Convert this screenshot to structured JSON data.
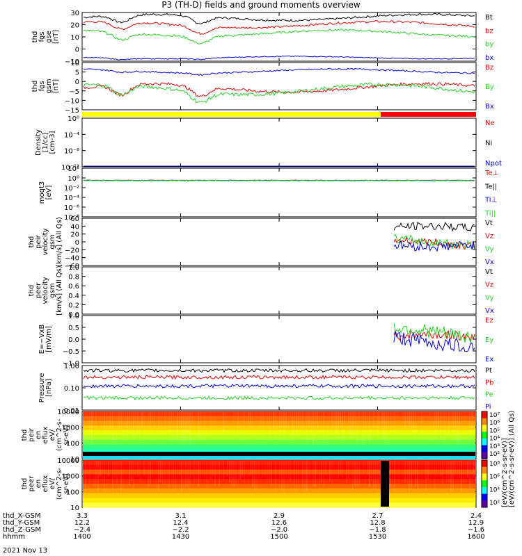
{
  "title": "P3 (TH-D) fields and ground moments overview",
  "colors": {
    "black": "#000000",
    "red": "#e00000",
    "green": "#22d322",
    "blue": "#0000d8"
  },
  "x_axis": {
    "rows": [
      {
        "label": "thd_X-GSM",
        "values": [
          "3.3",
          "3.1",
          "2.9",
          "2.7",
          "2.4"
        ]
      },
      {
        "label": "thd_Y-GSM",
        "values": [
          "12.2",
          "12.4",
          "12.6",
          "12.8",
          "12.9"
        ]
      },
      {
        "label": "thd_Z-GSM",
        "values": [
          "−2.4",
          "−2.2",
          "−2.0",
          "−1.8",
          "−1.6"
        ]
      },
      {
        "label": "hhmm",
        "values": [
          "1400",
          "1430",
          "1500",
          "1530",
          "1600"
        ]
      }
    ],
    "date": "2021 Nov 13"
  },
  "colorbar_label": "[eV/(cm^2-s-sr-eV)] (All Qs)",
  "colorbar_label_2": "[eV/(cm^2-s-sr-eV)]",
  "chart_data": [
    {
      "type": "line",
      "id": "fgs_gse",
      "ylabel": [
        "thd",
        "fgs",
        "gse",
        "[nT]"
      ],
      "ylim": [
        -10,
        30
      ],
      "yticks": [
        "30",
        "20",
        "10",
        "0",
        "−10"
      ],
      "series": [
        {
          "name": "Bt",
          "color": "black",
          "level": 26,
          "amp": 2.5
        },
        {
          "name": "bz",
          "color": "red",
          "level": 20,
          "amp": 2.5
        },
        {
          "name": "by",
          "color": "green",
          "level": 13,
          "amp": 2.5
        },
        {
          "name": "bx",
          "color": "blue",
          "level": -7,
          "amp": 1
        }
      ]
    },
    {
      "type": "line",
      "id": "fgs_gsm",
      "ylabel": [
        "thd",
        "fgs",
        "gsm",
        "[nT]"
      ],
      "ylim": [
        -18,
        10
      ],
      "yticks": [
        "10",
        "5",
        "0",
        "−5",
        "−10",
        "−15"
      ],
      "series": [
        {
          "name": "Bz",
          "color": "red",
          "level": -5,
          "amp": 2.5
        },
        {
          "name": "By",
          "color": "green",
          "level": -6,
          "amp": 3
        },
        {
          "name": "Bx",
          "color": "blue",
          "level": 5,
          "amp": 1.2
        }
      ]
    },
    {
      "type": "line",
      "id": "density",
      "ylabel": [
        "Density",
        "[1/cc]",
        "[cm-3]"
      ],
      "ylim": [
        -14,
        2
      ],
      "log": true,
      "yticks": [
        "10⁰",
        "10⁻⁴",
        "10⁻⁸",
        "10⁻¹²"
      ],
      "series": [
        {
          "name": "Ne",
          "color": "red",
          "level": 0
        },
        {
          "name": "Ni",
          "color": "black",
          "level": 0
        },
        {
          "name": "Npot",
          "color": "blue",
          "level": 0
        }
      ]
    },
    {
      "type": "line",
      "id": "temp",
      "ylabel": [
        "moqt3",
        "[eV]"
      ],
      "ylim": [
        -10,
        4
      ],
      "log": true,
      "yticks": [
        "10²",
        "10⁰",
        "10⁻²",
        "10⁻⁴",
        "10⁻⁶",
        "10⁻⁸"
      ],
      "series": [
        {
          "name": "Te⊥",
          "color": "red",
          "level": 3
        },
        {
          "name": "Te||",
          "color": "black",
          "level": 3
        },
        {
          "name": "Ti⊥",
          "color": "blue",
          "level": 3
        },
        {
          "name": "Ti||",
          "color": "green",
          "level": 3
        }
      ]
    },
    {
      "type": "line",
      "id": "peir_vel",
      "ylabel": [
        "thd",
        "peir",
        "velocity",
        "gsm",
        "[km/s] (All Qs)"
      ],
      "ylim": [
        -60,
        60
      ],
      "yticks": [
        "60",
        "40",
        "20",
        "0",
        "−20",
        "−40",
        "−60"
      ],
      "series": [
        {
          "name": "Vt",
          "color": "black",
          "level": 30,
          "amp": 10
        },
        {
          "name": "Vz",
          "color": "red",
          "level": -5,
          "amp": 10
        },
        {
          "name": "Vy",
          "color": "green",
          "level": 5,
          "amp": 12
        },
        {
          "name": "Vx",
          "color": "blue",
          "level": 0,
          "amp": 12
        }
      ]
    },
    {
      "type": "line",
      "id": "peer_vel",
      "ylabel": [
        "thd",
        "peer",
        "velocity",
        "gsm",
        "[km/s] (All Qs)"
      ],
      "ylim": [
        0,
        1
      ],
      "yticks": [
        "1.0",
        "0.8",
        "0.6",
        "0.4",
        "0.2",
        "0.0"
      ],
      "series": [
        {
          "name": "Vt",
          "color": "black"
        },
        {
          "name": "Vz",
          "color": "red"
        },
        {
          "name": "Vy",
          "color": "green"
        },
        {
          "name": "Vx",
          "color": "blue"
        }
      ]
    },
    {
      "type": "line",
      "id": "efield",
      "ylabel": [
        "E=−VxB",
        "[mV/m]"
      ],
      "ylim": [
        -1,
        1
      ],
      "yticks": [
        "1.0",
        "0.5",
        "0.0",
        "−0.5",
        "−1.0"
      ],
      "series": [
        {
          "name": "Ez",
          "color": "red",
          "level": 0,
          "amp": 0.2
        },
        {
          "name": "Ey",
          "color": "green",
          "level": 0.2,
          "amp": 0.3
        },
        {
          "name": "Ex",
          "color": "blue",
          "level": 0,
          "amp": 0.3
        }
      ]
    },
    {
      "type": "line",
      "id": "pressure",
      "ylabel": [
        "Pressure",
        "[nPa]"
      ],
      "ylim": [
        -2,
        0
      ],
      "log": true,
      "yticks": [
        "1.00",
        "0.10",
        "0.01"
      ],
      "series": [
        {
          "name": "Pt",
          "color": "black",
          "level": 0.6
        },
        {
          "name": "Pb",
          "color": "red",
          "level": 0.3
        },
        {
          "name": "Pe",
          "color": "green",
          "level": 0.035
        },
        {
          "name": "Pi",
          "color": "blue",
          "level": 0.12
        }
      ]
    },
    {
      "type": "heatmap",
      "id": "peir_en",
      "ylabel": [
        "thd",
        "peir",
        "en",
        "eflux",
        "eV/",
        "(cm^2-s-",
        "sr-eV)"
      ],
      "ylim": [
        10,
        15000
      ],
      "yticks": [
        "10000",
        "1000",
        "100",
        "10"
      ],
      "cbar": [
        "10⁷",
        "10⁶",
        "10⁵",
        "10⁴",
        "10³",
        "10²"
      ]
    },
    {
      "type": "heatmap",
      "id": "peer_en",
      "ylabel": [
        "thd",
        "peer",
        "en",
        "eflux",
        "eV/",
        "(cm^2-s-",
        "sr-eV)"
      ],
      "ylim": [
        10,
        15000
      ],
      "yticks": [
        "10000",
        "1000",
        "100",
        "10"
      ],
      "cbar": [
        "10⁸",
        "10⁶",
        "10⁴",
        "10²"
      ]
    }
  ],
  "mode_bar": {
    "colors": [
      "#ffff00",
      "#ff0000"
    ],
    "labels": [],
    "switch_at": "1530"
  }
}
